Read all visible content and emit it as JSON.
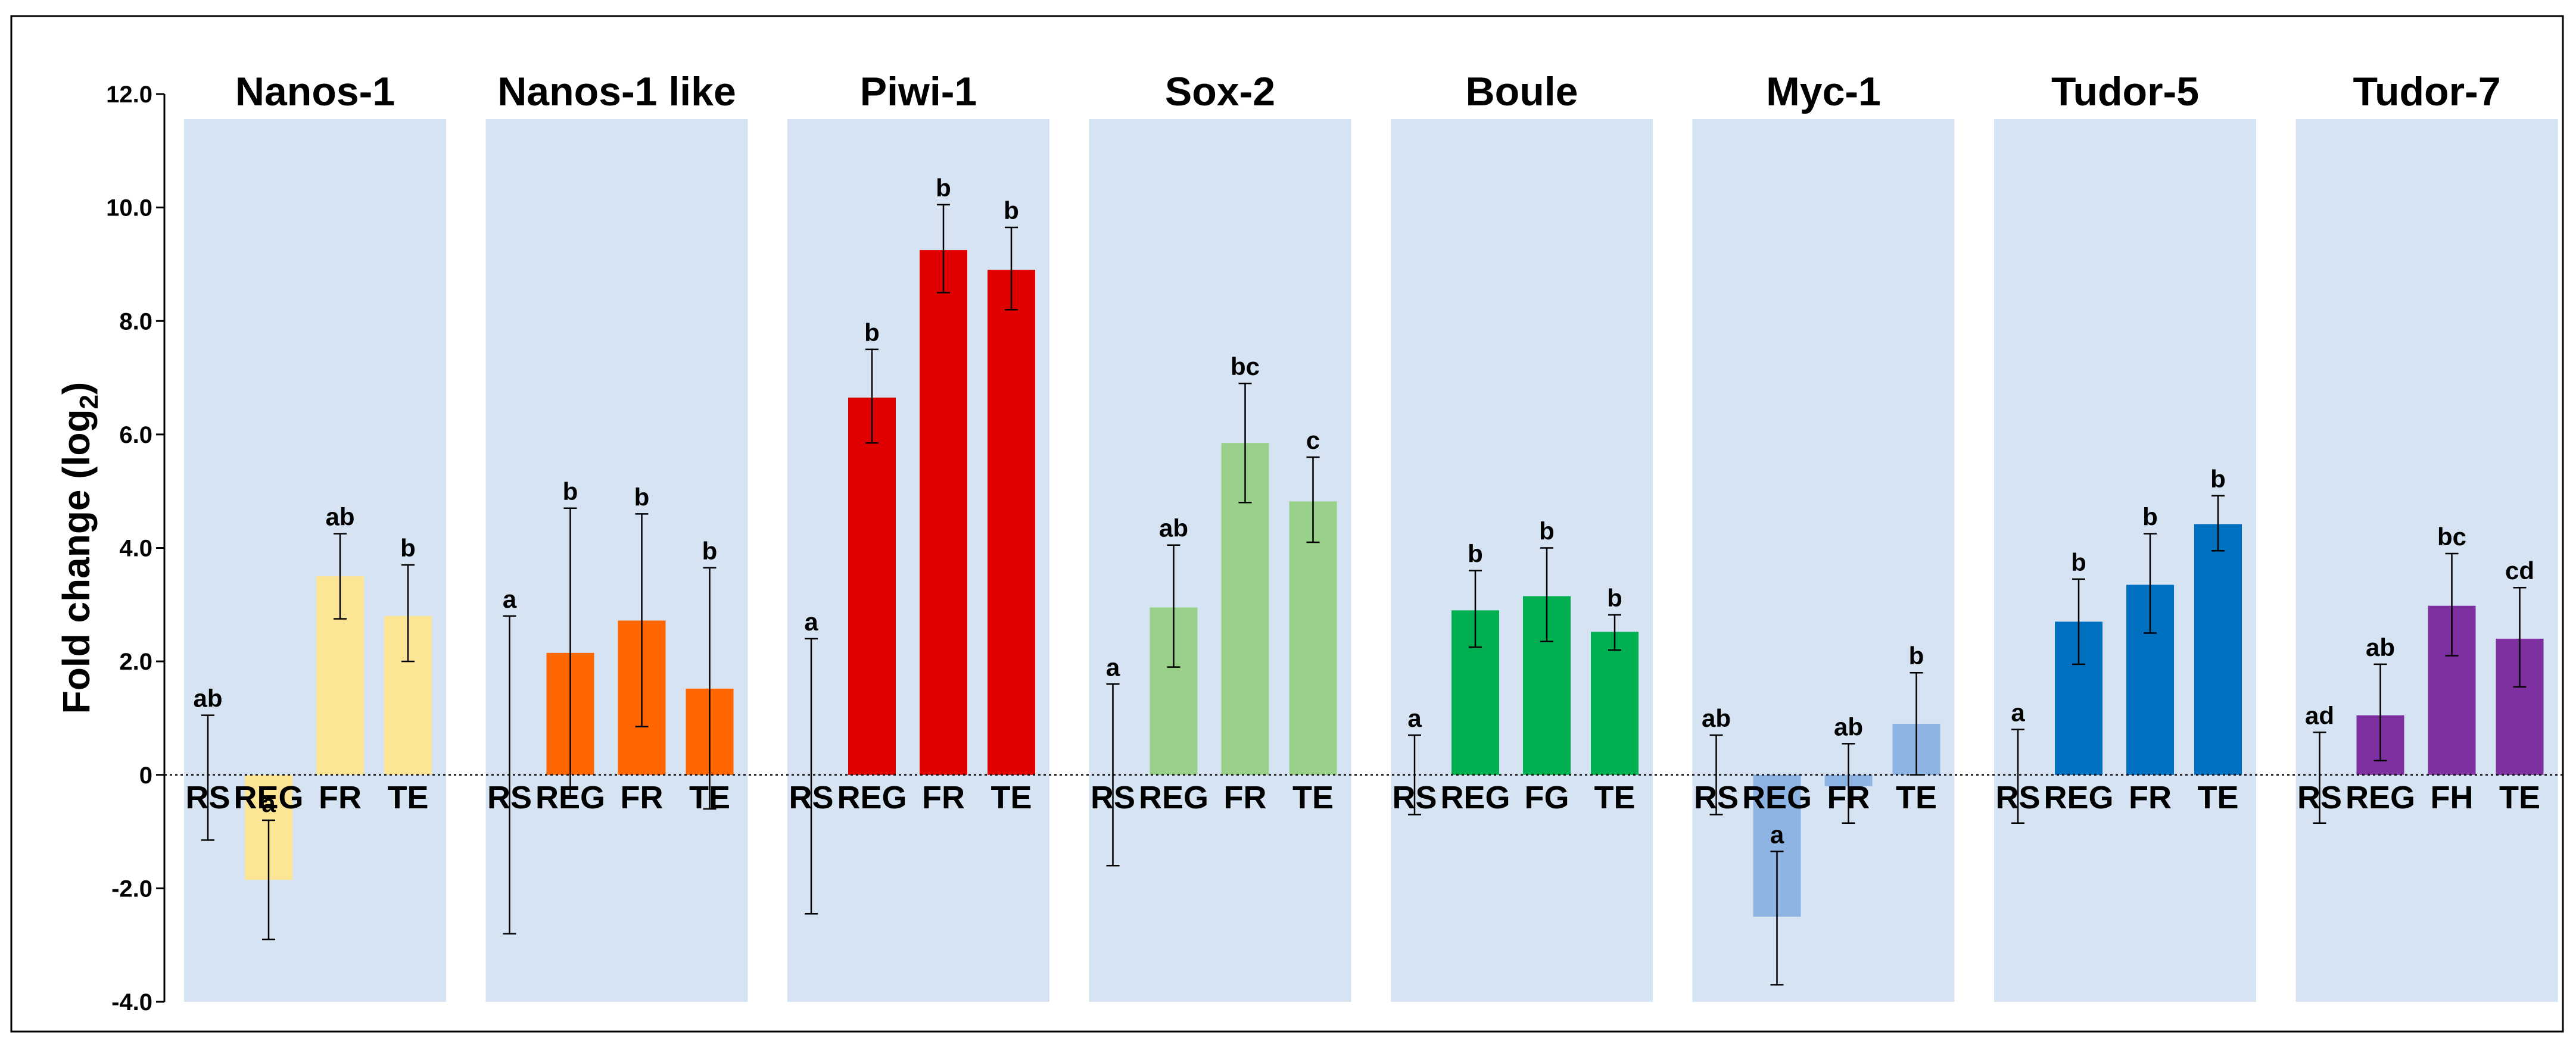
{
  "chart_data": {
    "type": "bar",
    "ylabel": "Fold change (log",
    "ylabel_subscript": "2",
    "ylabel_suffix": ")",
    "ylim": [
      -4.0,
      12.0
    ],
    "yticks": [
      {
        "value": -4,
        "label": "-4.0"
      },
      {
        "value": -2,
        "label": "-2.0"
      },
      {
        "value": 0,
        "label": "0"
      },
      {
        "value": 2,
        "label": "2.0"
      },
      {
        "value": 4,
        "label": "4.0"
      },
      {
        "value": 6,
        "label": "6.0"
      },
      {
        "value": 8,
        "label": "8.0"
      },
      {
        "value": 10,
        "label": "10.0"
      },
      {
        "value": 12,
        "label": "12.0"
      }
    ],
    "panel_background": "#d6e3f3",
    "zero_line": "dotted",
    "genes": [
      {
        "name": "Nanos-1",
        "color": "#fde596",
        "bars": [
          {
            "category": "RS",
            "value": 0,
            "err_low": -1.15,
            "err_high": 1.05,
            "sig": "ab"
          },
          {
            "category": "REG",
            "value": -1.85,
            "err_low": -2.9,
            "err_high": -0.8,
            "sig": "a"
          },
          {
            "category": "FR",
            "value": 3.5,
            "err_low": 2.75,
            "err_high": 4.25,
            "sig": "ab"
          },
          {
            "category": "TE",
            "value": 2.8,
            "err_low": 2.0,
            "err_high": 3.7,
            "sig": "b"
          }
        ]
      },
      {
        "name": "Nanos-1 like",
        "color": "#ff6600",
        "bars": [
          {
            "category": "RS",
            "value": 0,
            "err_low": -2.8,
            "err_high": 2.8,
            "sig": "a"
          },
          {
            "category": "REG",
            "value": 2.15,
            "err_low": -0.4,
            "err_high": 4.7,
            "sig": "b"
          },
          {
            "category": "FR",
            "value": 2.72,
            "err_low": 0.85,
            "err_high": 4.6,
            "sig": "b"
          },
          {
            "category": "TE",
            "value": 1.52,
            "err_low": -0.6,
            "err_high": 3.65,
            "sig": "b"
          }
        ]
      },
      {
        "name": "Piwi-1",
        "color": "#e00000",
        "bars": [
          {
            "category": "RS",
            "value": 0,
            "err_low": -2.45,
            "err_high": 2.4,
            "sig": "a"
          },
          {
            "category": "REG",
            "value": 6.65,
            "err_low": 5.85,
            "err_high": 7.5,
            "sig": "b"
          },
          {
            "category": "FR",
            "value": 9.25,
            "err_low": 8.5,
            "err_high": 10.05,
            "sig": "b"
          },
          {
            "category": "TE",
            "value": 8.9,
            "err_low": 8.2,
            "err_high": 9.65,
            "sig": "b"
          }
        ]
      },
      {
        "name": "Sox-2",
        "color": "#99d18a",
        "bars": [
          {
            "category": "RS",
            "value": 0,
            "err_low": -1.6,
            "err_high": 1.6,
            "sig": "a"
          },
          {
            "category": "REG",
            "value": 2.95,
            "err_low": 1.9,
            "err_high": 4.05,
            "sig": "ab"
          },
          {
            "category": "FR",
            "value": 5.85,
            "err_low": 4.8,
            "err_high": 6.9,
            "sig": "bc"
          },
          {
            "category": "TE",
            "value": 4.82,
            "err_low": 4.1,
            "err_high": 5.6,
            "sig": "c"
          }
        ]
      },
      {
        "name": "Boule",
        "color": "#00b050",
        "bars": [
          {
            "category": "RS",
            "value": 0,
            "err_low": -0.7,
            "err_high": 0.7,
            "sig": "a"
          },
          {
            "category": "REG",
            "value": 2.9,
            "err_low": 2.25,
            "err_high": 3.6,
            "sig": "b"
          },
          {
            "category": "FG",
            "value": 3.15,
            "err_low": 2.35,
            "err_high": 4.0,
            "sig": "b"
          },
          {
            "category": "TE",
            "value": 2.52,
            "err_low": 2.2,
            "err_high": 2.82,
            "sig": "b"
          }
        ]
      },
      {
        "name": "Myc-1",
        "color": "#8eb4e3",
        "bars": [
          {
            "category": "RS",
            "value": 0,
            "err_low": -0.7,
            "err_high": 0.7,
            "sig": "ab"
          },
          {
            "category": "REG",
            "value": -2.5,
            "err_low": -3.7,
            "err_high": -1.35,
            "sig": "a"
          },
          {
            "category": "FR",
            "value": -0.2,
            "err_low": -0.85,
            "err_high": 0.55,
            "sig": "ab"
          },
          {
            "category": "TE",
            "value": 0.9,
            "err_low": 0.0,
            "err_high": 1.8,
            "sig": "b"
          }
        ]
      },
      {
        "name": "Tudor-5",
        "color": "#0070c0",
        "bars": [
          {
            "category": "RS",
            "value": 0,
            "err_low": -0.85,
            "err_high": 0.8,
            "sig": "a"
          },
          {
            "category": "REG",
            "value": 2.7,
            "err_low": 1.95,
            "err_high": 3.45,
            "sig": "b"
          },
          {
            "category": "FR",
            "value": 3.35,
            "err_low": 2.5,
            "err_high": 4.25,
            "sig": "b"
          },
          {
            "category": "TE",
            "value": 4.42,
            "err_low": 3.95,
            "err_high": 4.92,
            "sig": "b"
          }
        ]
      },
      {
        "name": "Tudor-7",
        "color": "#7f30a0",
        "bars": [
          {
            "category": "RS",
            "value": 0,
            "err_low": -0.85,
            "err_high": 0.75,
            "sig": "ad"
          },
          {
            "category": "REG",
            "value": 1.05,
            "err_low": 0.25,
            "err_high": 1.95,
            "sig": "ab"
          },
          {
            "category": "FH",
            "value": 2.98,
            "err_low": 2.1,
            "err_high": 3.9,
            "sig": "bc"
          },
          {
            "category": "TE",
            "value": 2.4,
            "err_low": 1.55,
            "err_high": 3.3,
            "sig": "cd"
          }
        ]
      }
    ]
  }
}
